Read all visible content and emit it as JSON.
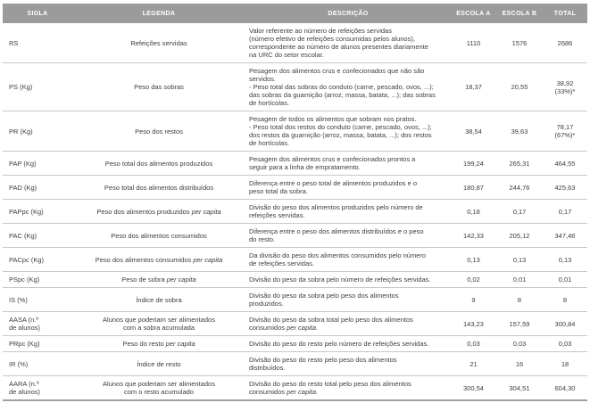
{
  "colors": {
    "header_bg": "#9b9b9b",
    "header_text": "#ffffff",
    "body_text": "#3d3d3d",
    "row_line": "#c8c8c8",
    "bottom_line": "#a0a0a0",
    "page_bg": "#ffffff"
  },
  "header": {
    "columns": [
      "SIGLA",
      "LEGENDA",
      "DESCRIÇÃO",
      "ESCOLA A",
      "ESCOLA B",
      "TOTAL"
    ]
  },
  "rows": [
    {
      "sigla": "RS",
      "legenda": "Refeições servidas",
      "descricao": "Valor referente ao número de refeições servidas\n(número efetivo de refeições consumidas pelos alunos),\ncorrespondente ao número de alunos presentes diariamente\nna URC do setor escolar.",
      "escola_a": "1110",
      "escola_b": "1576",
      "total": "2686"
    },
    {
      "sigla": "PS (Kg)",
      "legenda": "Peso das sobras",
      "descricao": "Pesagem dos alimentos crus e confecionados que não são\nservidos.\n- Peso total das sobras do conduto (carne, pescado, ovos, ...);\ndas sobras da guarnição (arroz, massa, batata, ...); das sobras\nde hortícolas.",
      "escola_a": "18,37",
      "escola_b": "20,55",
      "total": "38,92\n(33%)*"
    },
    {
      "sigla": "PR (Kg)",
      "legenda": "Peso dos restos",
      "descricao": "Pesagem de todos os alimentos que sobram nos pratos.\n- Peso total dos restos do conduto (carne, pescado, ovos, ...);\ndos restos da guarnição (arroz, massa, batata, ...); dos restos\nde hortícolas.",
      "escola_a": "38,54",
      "escola_b": "39,63",
      "total": "78,17\n(67%)*"
    },
    {
      "sigla": "PAP (Kg)",
      "legenda": "Peso total dos alimentos produzidos",
      "descricao": "Pesagem dos alimentos crus e confecionados prontos a\nseguir para a linha de empratamento.",
      "escola_a": "199,24",
      "escola_b": "265,31",
      "total": "464,55"
    },
    {
      "sigla": "PAD (Kg)",
      "legenda": "Peso total dos alimentos distribuídos",
      "descricao": "Diferença entre o peso total de alimentos produzidos e o\npeso total da sobra.",
      "escola_a": "180,87",
      "escola_b": "244,76",
      "total": "425,63"
    },
    {
      "sigla": "PAPpc (Kg)",
      "legenda": "Peso dos alimentos produzidos *per capita*",
      "descricao": "Divisão do peso dos alimentos produzidos pelo número de\nrefeições servidas.",
      "escola_a": "0,18",
      "escola_b": "0,17",
      "total": "0,17"
    },
    {
      "sigla": "PAC (Kg)",
      "legenda": "Peso dos alimentos consumidos",
      "descricao": "Diferença entre o peso dos alimentos distribuídos e o peso\ndo resto.",
      "escola_a": "142,33",
      "escola_b": "205,12",
      "total": "347,46"
    },
    {
      "sigla": "PACpc (Kg)",
      "legenda": "Peso dos alimentos consumidos *per capita*",
      "descricao": "Da divisão do peso dos alimentos consumidos pelo número\nde refeições servidas.",
      "escola_a": "0,13",
      "escola_b": "0,13",
      "total": "0,13"
    },
    {
      "sigla": "PSpc (Kg)",
      "legenda": "Peso de sobra *per capita*",
      "descricao": "Divisão do peso da sobra pelo número de refeições servidas.",
      "escola_a": "0,02",
      "escola_b": "0,01",
      "total": "0,01"
    },
    {
      "sigla": "IS (%)",
      "legenda": "Índice de sobra",
      "descricao": "Divisão do peso da sobra pelo peso dos alimentos\nproduzidos.",
      "escola_a": "9",
      "escola_b": "8",
      "total": "8"
    },
    {
      "sigla": "AASA (n.º\nde alunos)",
      "legenda": "Alunos que poderiam ser alimentados\ncom a sobra acumulada",
      "descricao": "Divisão do peso da sobra total pelo peso dos alimentos\nconsumidos *per capita*.",
      "escola_a": "143,23",
      "escola_b": "157,59",
      "total": "300,84"
    },
    {
      "sigla": "PRpc (Kg)",
      "legenda": "Peso do resto *per capita*",
      "descricao": "Divisão do peso do resto pelo número de refeições servidas.",
      "escola_a": "0,03",
      "escola_b": "0,03",
      "total": "0,03"
    },
    {
      "sigla": "IR (%)",
      "legenda": "Índice de resto",
      "descricao": "Divisão do peso do resto pelo peso dos alimentos\ndistribuídos.",
      "escola_a": "21",
      "escola_b": "16",
      "total": "18"
    },
    {
      "sigla": "AARA (n.º\nde alunos)",
      "legenda": "Alunos que poderiam ser alimentados\ncom o resto acumulado",
      "descricao": "Divisão do peso do resto total pelo peso dos alimentos\nconsumidos *per capita*.",
      "escola_a": "300,54",
      "escola_b": "304,51",
      "total": "604,30"
    }
  ]
}
